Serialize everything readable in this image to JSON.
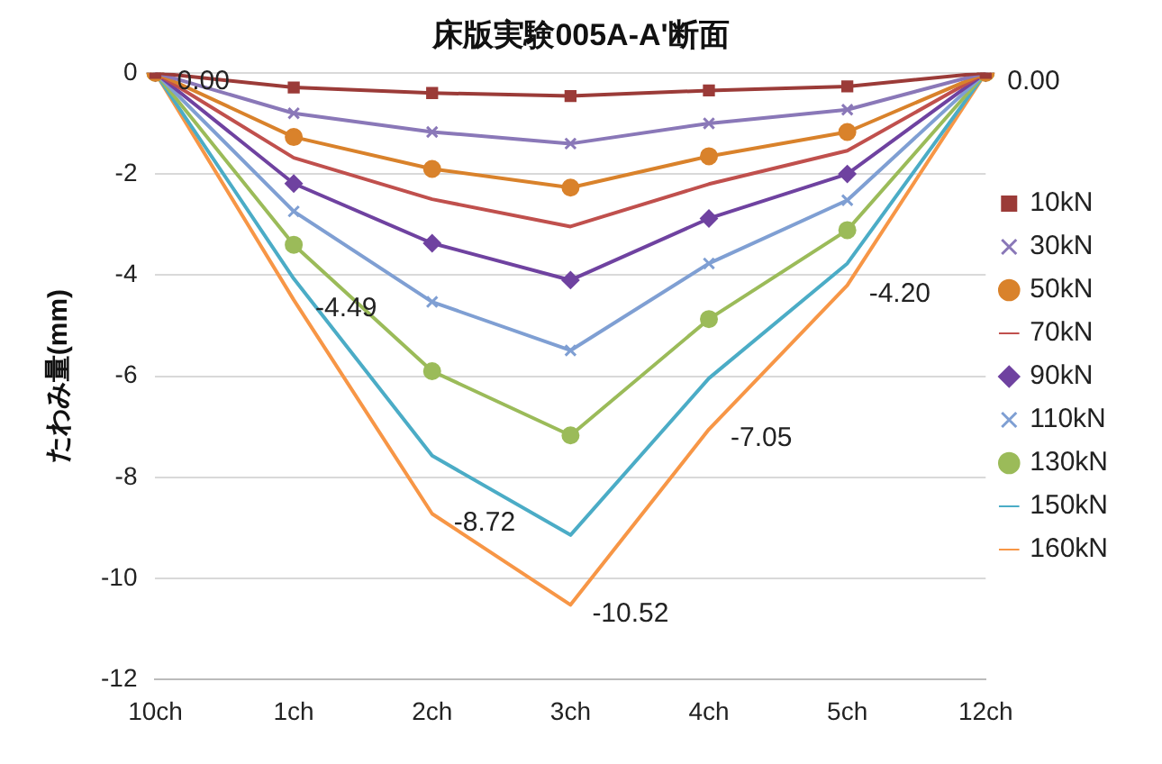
{
  "chart_data": {
    "type": "line",
    "title": "床版実験005A-A'断面",
    "ylabel": "たわみ量(mm)",
    "categories": [
      "10ch",
      "1ch",
      "2ch",
      "3ch",
      "4ch",
      "5ch",
      "12ch"
    ],
    "ylim": [
      -12,
      0
    ],
    "yticks": [
      -12,
      -10,
      -8,
      -6,
      -4,
      -2,
      0
    ],
    "grid": "y",
    "legend": "right",
    "series": [
      {
        "name": "10kN",
        "color": "#9b3b38",
        "marker": "square",
        "values": [
          0,
          -0.29,
          -0.4,
          -0.46,
          -0.35,
          -0.27,
          0
        ]
      },
      {
        "name": "30kN",
        "color": "#8a78b8",
        "marker": "cross",
        "values": [
          0,
          -0.8,
          -1.17,
          -1.4,
          -1.0,
          -0.73,
          0
        ]
      },
      {
        "name": "50kN",
        "color": "#d9822b",
        "marker": "circle",
        "values": [
          0,
          -1.27,
          -1.9,
          -2.27,
          -1.65,
          -1.17,
          0
        ]
      },
      {
        "name": "70kN",
        "color": "#c0504d",
        "marker": "none",
        "values": [
          0,
          -1.68,
          -2.5,
          -3.04,
          -2.2,
          -1.54,
          0
        ]
      },
      {
        "name": "90kN",
        "color": "#6f42a0",
        "marker": "diamond",
        "values": [
          0,
          -2.19,
          -3.37,
          -4.1,
          -2.88,
          -2.0,
          0
        ]
      },
      {
        "name": "110kN",
        "color": "#7f9fd3",
        "marker": "cross",
        "values": [
          0,
          -2.74,
          -4.53,
          -5.49,
          -3.77,
          -2.52,
          0
        ]
      },
      {
        "name": "130kN",
        "color": "#9bbb59",
        "marker": "circle",
        "values": [
          0,
          -3.4,
          -5.9,
          -7.17,
          -4.87,
          -3.11,
          0
        ]
      },
      {
        "name": "150kN",
        "color": "#4bacc6",
        "marker": "none",
        "values": [
          0,
          -4.07,
          -7.57,
          -9.14,
          -6.04,
          -3.77,
          0
        ]
      },
      {
        "name": "160kN",
        "color": "#f79646",
        "marker": "none",
        "values": [
          0,
          -4.49,
          -8.72,
          -10.52,
          -7.05,
          -4.2,
          0
        ],
        "value_labels": [
          "0.00",
          "-4.49",
          "-8.72",
          "-10.52",
          "-7.05",
          "-4.20",
          "0.00"
        ]
      }
    ]
  }
}
